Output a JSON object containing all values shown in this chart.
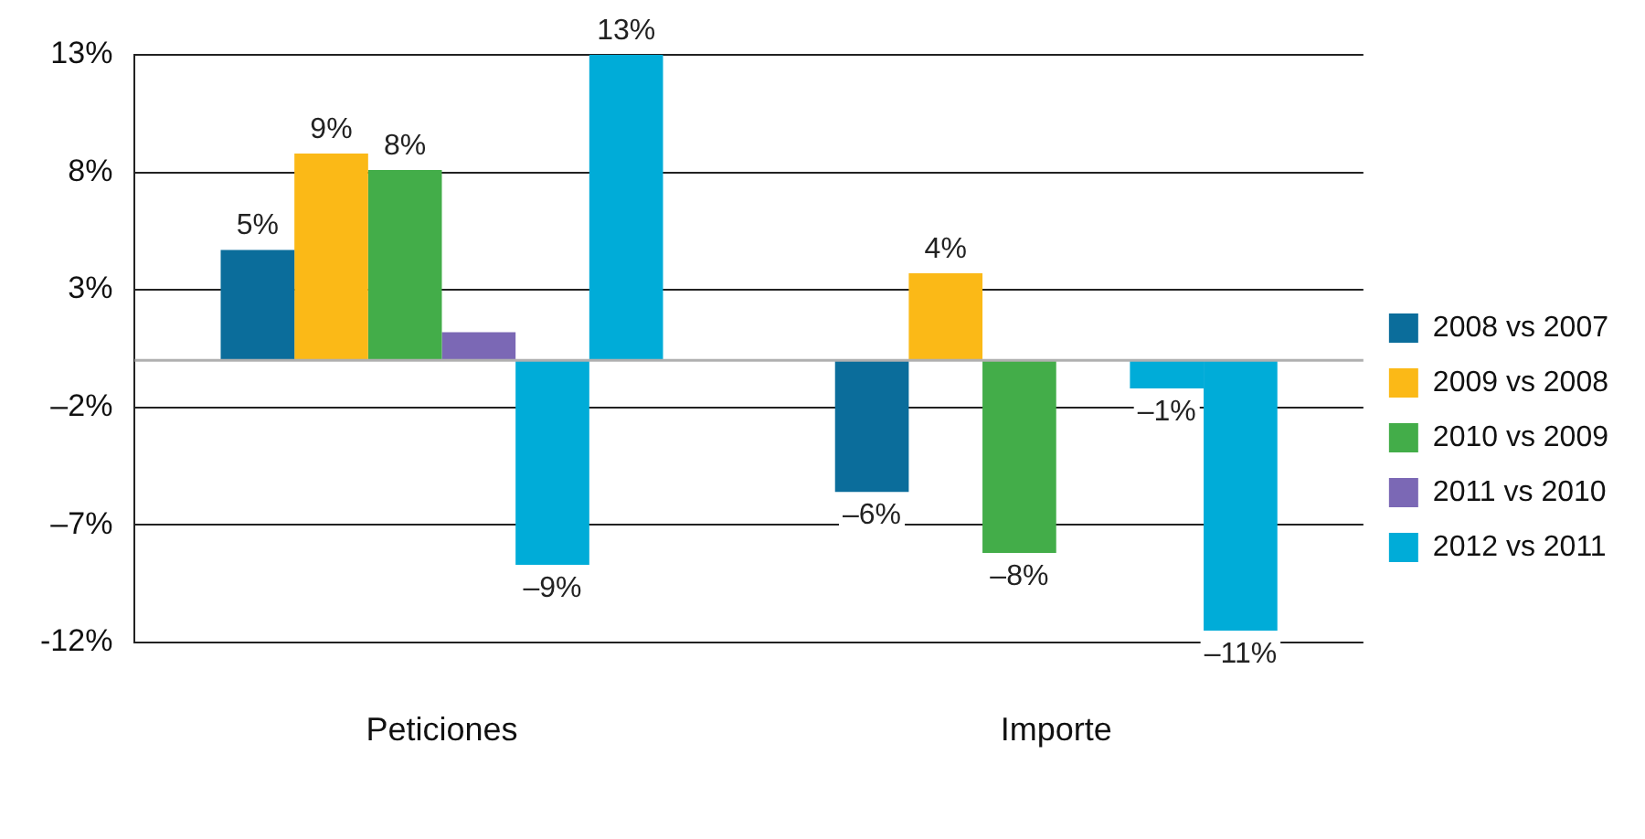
{
  "chart_data": {
    "type": "bar",
    "categories": [
      "Peticiones",
      "Importe"
    ],
    "series": [
      {
        "name": "2008 vs 2007",
        "color": "#0b6d9b",
        "values": [
          4.7,
          -5.6
        ],
        "value_labels": [
          "5%",
          "–6%"
        ]
      },
      {
        "name": "2009 vs 2008",
        "color": "#fbb917",
        "values": [
          8.8,
          3.7
        ],
        "value_labels": [
          "9%",
          "4%"
        ]
      },
      {
        "name": "2010 vs 2009",
        "color": "#43ad49",
        "values": [
          8.1,
          -8.2
        ],
        "value_labels": [
          "8%",
          "–8%"
        ]
      },
      {
        "name": "2011 vs 2010",
        "color": "#7b68b5",
        "values": [
          1.2,
          null
        ],
        "value_labels": [
          null,
          null
        ]
      },
      {
        "name": "2012 vs 2011",
        "color": "#00acd8",
        "values": [
          -8.7,
          -1.2
        ],
        "value_labels": [
          "–9%",
          "–1%"
        ]
      },
      {
        "color": "#00acd8",
        "values": [
          13,
          -11.5
        ],
        "value_labels": [
          "13%",
          "–11%"
        ]
      }
    ],
    "ylim": [
      -12,
      13
    ],
    "yticks": [
      {
        "value": 13,
        "label": "13%"
      },
      {
        "value": 8,
        "label": "8%"
      },
      {
        "value": 3,
        "label": "3%"
      },
      {
        "value": -2,
        "label": "–2%"
      },
      {
        "value": -7,
        "label": "–7%"
      },
      {
        "value": -12,
        "label": "-12%"
      }
    ],
    "grid": "y",
    "legend": "right"
  }
}
